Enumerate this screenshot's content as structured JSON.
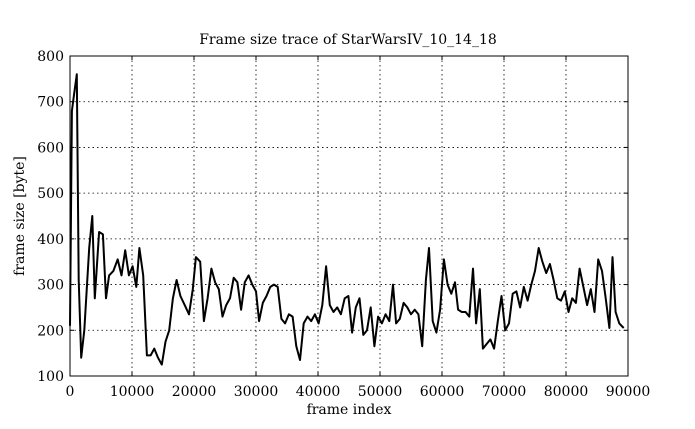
{
  "chart_data": {
    "type": "line",
    "title": "Frame size trace of StarWarsIV_10_14_18",
    "xlabel": "frame index",
    "ylabel": "frame size [byte]",
    "xlim": [
      0,
      90000
    ],
    "ylim": [
      100,
      800
    ],
    "xticks": [
      0,
      10000,
      20000,
      30000,
      40000,
      50000,
      60000,
      70000,
      80000,
      90000
    ],
    "yticks": [
      100,
      200,
      300,
      400,
      500,
      600,
      700,
      800
    ],
    "grid": true,
    "series": [
      {
        "values": [
          [
            0,
            210
          ],
          [
            300,
            680
          ],
          [
            700,
            720
          ],
          [
            1100,
            760
          ],
          [
            1400,
            310
          ],
          [
            1800,
            140
          ],
          [
            2300,
            200
          ],
          [
            3100,
            380
          ],
          [
            3600,
            450
          ],
          [
            4000,
            270
          ],
          [
            4700,
            415
          ],
          [
            5300,
            410
          ],
          [
            5800,
            270
          ],
          [
            6300,
            320
          ],
          [
            7000,
            330
          ],
          [
            7700,
            355
          ],
          [
            8300,
            320
          ],
          [
            8900,
            375
          ],
          [
            9500,
            320
          ],
          [
            10100,
            340
          ],
          [
            10700,
            295
          ],
          [
            11200,
            380
          ],
          [
            11800,
            320
          ],
          [
            12400,
            145
          ],
          [
            13000,
            145
          ],
          [
            13600,
            160
          ],
          [
            14200,
            140
          ],
          [
            14800,
            125
          ],
          [
            15400,
            175
          ],
          [
            16000,
            200
          ],
          [
            16600,
            270
          ],
          [
            17200,
            310
          ],
          [
            17800,
            275
          ],
          [
            18500,
            255
          ],
          [
            19200,
            235
          ],
          [
            19800,
            290
          ],
          [
            20300,
            360
          ],
          [
            21000,
            350
          ],
          [
            21600,
            220
          ],
          [
            22200,
            270
          ],
          [
            22800,
            335
          ],
          [
            23400,
            305
          ],
          [
            24000,
            290
          ],
          [
            24600,
            230
          ],
          [
            25200,
            255
          ],
          [
            25800,
            270
          ],
          [
            26400,
            315
          ],
          [
            27000,
            305
          ],
          [
            27600,
            245
          ],
          [
            28200,
            305
          ],
          [
            28800,
            320
          ],
          [
            29400,
            300
          ],
          [
            30000,
            285
          ],
          [
            30500,
            220
          ],
          [
            31100,
            260
          ],
          [
            31700,
            275
          ],
          [
            32300,
            295
          ],
          [
            32900,
            300
          ],
          [
            33500,
            295
          ],
          [
            34100,
            225
          ],
          [
            34700,
            215
          ],
          [
            35300,
            235
          ],
          [
            35900,
            230
          ],
          [
            36500,
            165
          ],
          [
            37100,
            135
          ],
          [
            37700,
            215
          ],
          [
            38300,
            230
          ],
          [
            38900,
            220
          ],
          [
            39500,
            235
          ],
          [
            40100,
            215
          ],
          [
            40700,
            255
          ],
          [
            41300,
            340
          ],
          [
            41900,
            255
          ],
          [
            42500,
            240
          ],
          [
            43100,
            250
          ],
          [
            43700,
            235
          ],
          [
            44300,
            270
          ],
          [
            44900,
            275
          ],
          [
            45500,
            195
          ],
          [
            46100,
            250
          ],
          [
            46700,
            270
          ],
          [
            47300,
            190
          ],
          [
            47900,
            200
          ],
          [
            48500,
            250
          ],
          [
            49100,
            165
          ],
          [
            49700,
            230
          ],
          [
            50300,
            215
          ],
          [
            50900,
            235
          ],
          [
            51500,
            220
          ],
          [
            52100,
            300
          ],
          [
            52600,
            215
          ],
          [
            53200,
            225
          ],
          [
            53800,
            260
          ],
          [
            54400,
            250
          ],
          [
            55000,
            235
          ],
          [
            55600,
            245
          ],
          [
            56200,
            235
          ],
          [
            56800,
            165
          ],
          [
            57400,
            310
          ],
          [
            57900,
            380
          ],
          [
            58500,
            220
          ],
          [
            59100,
            195
          ],
          [
            59700,
            245
          ],
          [
            60300,
            355
          ],
          [
            60900,
            300
          ],
          [
            61500,
            280
          ],
          [
            62100,
            305
          ],
          [
            62600,
            245
          ],
          [
            63200,
            240
          ],
          [
            63800,
            240
          ],
          [
            64400,
            230
          ],
          [
            65000,
            335
          ],
          [
            65500,
            215
          ],
          [
            66100,
            290
          ],
          [
            66600,
            160
          ],
          [
            67200,
            170
          ],
          [
            67800,
            180
          ],
          [
            68400,
            160
          ],
          [
            69000,
            220
          ],
          [
            69600,
            275
          ],
          [
            70200,
            200
          ],
          [
            70800,
            215
          ],
          [
            71400,
            280
          ],
          [
            72000,
            285
          ],
          [
            72600,
            250
          ],
          [
            73200,
            295
          ],
          [
            73800,
            265
          ],
          [
            74400,
            300
          ],
          [
            75000,
            330
          ],
          [
            75600,
            380
          ],
          [
            76200,
            350
          ],
          [
            76800,
            325
          ],
          [
            77400,
            345
          ],
          [
            78000,
            310
          ],
          [
            78600,
            270
          ],
          [
            79200,
            265
          ],
          [
            79800,
            285
          ],
          [
            80400,
            240
          ],
          [
            81000,
            270
          ],
          [
            81600,
            260
          ],
          [
            82200,
            335
          ],
          [
            82800,
            295
          ],
          [
            83400,
            255
          ],
          [
            84000,
            290
          ],
          [
            84600,
            240
          ],
          [
            85200,
            355
          ],
          [
            85800,
            330
          ],
          [
            86400,
            270
          ],
          [
            87000,
            205
          ],
          [
            87500,
            360
          ],
          [
            88000,
            240
          ],
          [
            88600,
            215
          ],
          [
            89300,
            205
          ]
        ]
      }
    ]
  }
}
